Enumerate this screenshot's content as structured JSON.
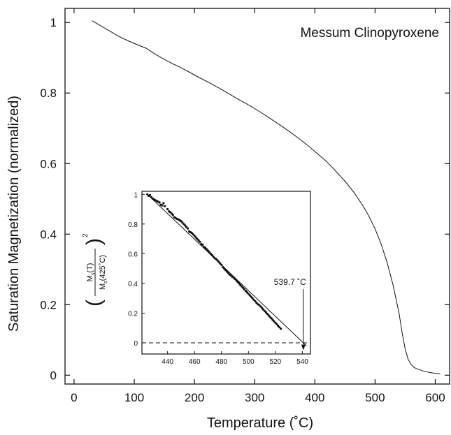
{
  "chart_data": [
    {
      "type": "line",
      "title": "Messum Clinopyroxene",
      "xlabel": "Temperature (˚C)",
      "ylabel": "Saturation Magnetization (normalized)",
      "xlim": [
        -15,
        625
      ],
      "ylim": [
        -0.025,
        1.04
      ],
      "xticks": [
        0,
        100,
        200,
        300,
        400,
        500,
        600
      ],
      "yticks": [
        0,
        0.2,
        0.4,
        0.6,
        0.8,
        1
      ],
      "xtick_labels": [
        "0",
        "100",
        "200",
        "300",
        "400",
        "500",
        "600"
      ],
      "ytick_labels": [
        "0",
        "0.2",
        "0.4",
        "0.6",
        "0.8",
        "1"
      ],
      "series": [
        {
          "x": [
            30,
            45,
            60,
            75,
            90,
            105,
            120,
            135,
            150,
            165,
            180,
            195,
            210,
            225,
            240,
            255,
            270,
            285,
            300,
            315,
            330,
            345,
            360,
            375,
            390,
            405,
            420,
            435,
            450,
            465,
            480,
            490,
            500,
            510,
            520,
            530,
            540,
            545,
            550,
            555,
            560,
            565,
            570,
            580,
            590,
            600,
            608
          ],
          "y": [
            1.005,
            0.99,
            0.975,
            0.96,
            0.948,
            0.937,
            0.927,
            0.91,
            0.895,
            0.882,
            0.87,
            0.856,
            0.842,
            0.829,
            0.815,
            0.8,
            0.785,
            0.771,
            0.756,
            0.74,
            0.723,
            0.706,
            0.688,
            0.669,
            0.649,
            0.627,
            0.605,
            0.578,
            0.55,
            0.518,
            0.48,
            0.45,
            0.415,
            0.372,
            0.32,
            0.255,
            0.175,
            0.12,
            0.075,
            0.045,
            0.03,
            0.022,
            0.018,
            0.012,
            0.008,
            0.005,
            0.004
          ]
        }
      ],
      "inset": {
        "type": "scatter",
        "ylabel_numerator": "M",
        "ylabel_numerator_sub": "s",
        "ylabel_numerator_arg": "(T)",
        "ylabel_denominator": "M",
        "ylabel_denominator_sub": "s",
        "ylabel_denominator_arg": "(425˚C)",
        "ylabel_power": "2",
        "xlim": [
          421,
          546
        ],
        "ylim": [
          -0.075,
          1.02
        ],
        "xticks": [
          440,
          460,
          480,
          500,
          520,
          540
        ],
        "yticks": [
          0,
          0.2,
          0.4,
          0.6,
          0.8,
          1
        ],
        "xtick_labels": [
          "440",
          "460",
          "480",
          "500",
          "520",
          "540"
        ],
        "ytick_labels": [
          "0",
          "0.2",
          "0.4",
          "0.6",
          "0.8",
          "1"
        ],
        "points_x": [
          425,
          426,
          427,
          428,
          429,
          430,
          431,
          432,
          433,
          434,
          435,
          436,
          437,
          438,
          440,
          441,
          442,
          443,
          444,
          445,
          446,
          447,
          448,
          449,
          450,
          451,
          452,
          453,
          454,
          455,
          456,
          457,
          458,
          459,
          460,
          461,
          462,
          463,
          464,
          465,
          466,
          467,
          468,
          469,
          470,
          471,
          472,
          473,
          474,
          475,
          476,
          477,
          478,
          479,
          480,
          481,
          482,
          483,
          484,
          485,
          486,
          487,
          488,
          489,
          490,
          491,
          492,
          493,
          494,
          495,
          496,
          497,
          498,
          499,
          500,
          501,
          502,
          503,
          504,
          505,
          506,
          507,
          508,
          509,
          510,
          511,
          512,
          513,
          514,
          515,
          516,
          517,
          518,
          519,
          520,
          521,
          522,
          523,
          524
        ],
        "points_y": [
          1.0,
          0.99,
          0.995,
          0.98,
          0.97,
          0.965,
          0.96,
          0.955,
          0.95,
          0.945,
          0.93,
          0.925,
          0.94,
          0.92,
          0.9,
          0.885,
          0.88,
          0.87,
          0.86,
          0.845,
          0.84,
          0.835,
          0.83,
          0.825,
          0.82,
          0.81,
          0.8,
          0.79,
          0.78,
          0.77,
          0.75,
          0.745,
          0.74,
          0.73,
          0.72,
          0.71,
          0.7,
          0.69,
          0.68,
          0.665,
          0.66,
          0.645,
          0.64,
          0.63,
          0.62,
          0.61,
          0.6,
          0.59,
          0.58,
          0.57,
          0.565,
          0.555,
          0.545,
          0.535,
          0.525,
          0.51,
          0.5,
          0.49,
          0.48,
          0.47,
          0.46,
          0.455,
          0.445,
          0.44,
          0.43,
          0.42,
          0.41,
          0.4,
          0.39,
          0.38,
          0.37,
          0.36,
          0.35,
          0.34,
          0.33,
          0.32,
          0.31,
          0.3,
          0.29,
          0.28,
          0.27,
          0.26,
          0.255,
          0.245,
          0.235,
          0.225,
          0.215,
          0.205,
          0.195,
          0.185,
          0.175,
          0.165,
          0.155,
          0.145,
          0.135,
          0.125,
          0.115,
          0.105,
          0.095
        ],
        "fit_line": {
          "x": [
            425,
            543
          ],
          "y": [
            1.0,
            -0.02
          ]
        },
        "dashed_zero_line": 0,
        "annotation": {
          "text": "539.7 ˚C",
          "x": 540.7,
          "y": 0.39,
          "arrow_to_x": 540.7,
          "arrow_to_y": -0.05
        }
      }
    }
  ]
}
